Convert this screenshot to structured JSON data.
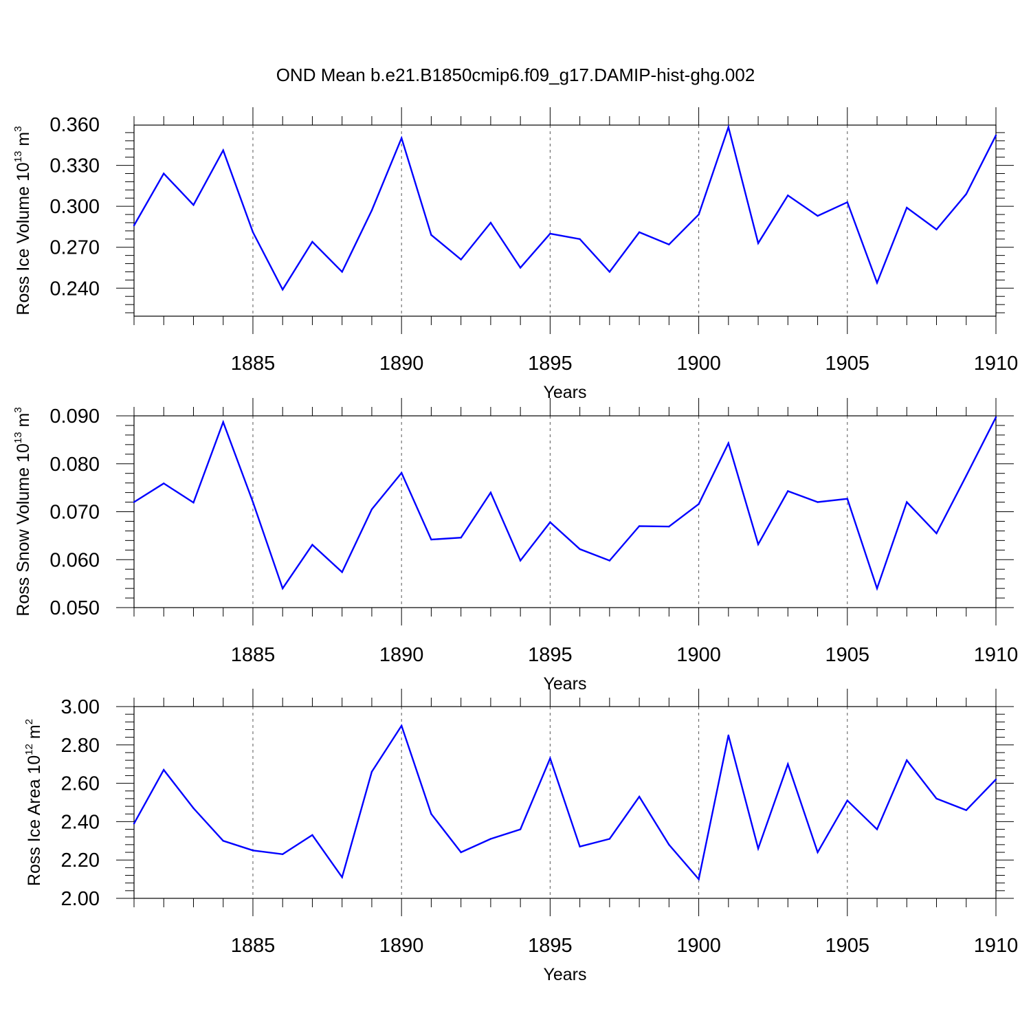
{
  "title": "OND Mean b.e21.B1850cmip6.f09_g17.DAMIP-hist-ghg.002",
  "chart_data": [
    {
      "type": "line",
      "xlabel": "Years",
      "ylabel": "Ross Ice Volume 10",
      "ylabel_exp": "13",
      "ylabel_unit": " m",
      "ylabel_unit_exp": "3",
      "xlim": [
        1881,
        1910
      ],
      "ylim": [
        0.2195,
        0.3595
      ],
      "yticks": [
        "0.360",
        "0.330",
        "0.300",
        "0.270",
        "0.240"
      ],
      "yticks_values": [
        0.36,
        0.33,
        0.3,
        0.27,
        0.24
      ],
      "xticks": [
        "1885",
        "1890",
        "1895",
        "1900",
        "1905",
        "1910"
      ],
      "xticks_values": [
        1885,
        1890,
        1895,
        1900,
        1905,
        1910
      ],
      "grid": "dashed vertical at major x ticks",
      "line_color": "#0000ff",
      "x": [
        1881,
        1882,
        1883,
        1884,
        1885,
        1886,
        1887,
        1888,
        1889,
        1890,
        1891,
        1892,
        1893,
        1894,
        1895,
        1896,
        1897,
        1898,
        1899,
        1900,
        1901,
        1902,
        1903,
        1904,
        1905,
        1906,
        1907,
        1908,
        1909,
        1910
      ],
      "values": [
        0.286,
        0.324,
        0.301,
        0.341,
        0.281,
        0.239,
        0.274,
        0.252,
        0.297,
        0.35,
        0.279,
        0.261,
        0.288,
        0.255,
        0.28,
        0.276,
        0.252,
        0.281,
        0.272,
        0.294,
        0.358,
        0.273,
        0.308,
        0.293,
        0.303,
        0.244,
        0.299,
        0.283,
        0.309,
        0.352
      ]
    },
    {
      "type": "line",
      "xlabel": "Years",
      "ylabel": "Ross Snow Volume 10",
      "ylabel_exp": "13",
      "ylabel_unit": " m",
      "ylabel_unit_exp": "3",
      "xlim": [
        1881,
        1910
      ],
      "ylim": [
        0.05,
        0.09
      ],
      "yticks": [
        "0.090",
        "0.080",
        "0.070",
        "0.060",
        "0.050"
      ],
      "yticks_values": [
        0.09,
        0.08,
        0.07,
        0.06,
        0.05
      ],
      "xticks": [
        "1885",
        "1890",
        "1895",
        "1900",
        "1905",
        "1910"
      ],
      "xticks_values": [
        1885,
        1890,
        1895,
        1900,
        1905,
        1910
      ],
      "grid": "dashed vertical at major x ticks",
      "line_color": "#0000ff",
      "x": [
        1881,
        1882,
        1883,
        1884,
        1885,
        1886,
        1887,
        1888,
        1889,
        1890,
        1891,
        1892,
        1893,
        1894,
        1895,
        1896,
        1897,
        1898,
        1899,
        1900,
        1901,
        1902,
        1903,
        1904,
        1905,
        1906,
        1907,
        1908,
        1909,
        1910
      ],
      "values": [
        0.072,
        0.0759,
        0.0719,
        0.0887,
        0.072,
        0.054,
        0.0631,
        0.0574,
        0.0705,
        0.0781,
        0.0642,
        0.0646,
        0.074,
        0.0598,
        0.0678,
        0.0622,
        0.0598,
        0.067,
        0.0669,
        0.0716,
        0.0843,
        0.0632,
        0.0743,
        0.072,
        0.0727,
        0.054,
        0.072,
        0.0655,
        0.0775,
        0.0897
      ]
    },
    {
      "type": "line",
      "xlabel": "Years",
      "ylabel": "Ross Ice Area 10",
      "ylabel_exp": "12",
      "ylabel_unit": " m",
      "ylabel_unit_exp": "2",
      "xlim": [
        1881,
        1910
      ],
      "ylim": [
        2.0,
        3.0
      ],
      "yticks": [
        "3.00",
        "2.80",
        "2.60",
        "2.40",
        "2.20",
        "2.00"
      ],
      "yticks_values": [
        3.0,
        2.8,
        2.6,
        2.4,
        2.2,
        2.0
      ],
      "xticks": [
        "1885",
        "1890",
        "1895",
        "1900",
        "1905",
        "1910"
      ],
      "xticks_values": [
        1885,
        1890,
        1895,
        1900,
        1905,
        1910
      ],
      "grid": "dashed vertical at major x ticks",
      "line_color": "#0000ff",
      "x": [
        1881,
        1882,
        1883,
        1884,
        1885,
        1886,
        1887,
        1888,
        1889,
        1890,
        1891,
        1892,
        1893,
        1894,
        1895,
        1896,
        1897,
        1898,
        1899,
        1900,
        1901,
        1902,
        1903,
        1904,
        1905,
        1906,
        1907,
        1908,
        1909,
        1910
      ],
      "values": [
        2.39,
        2.67,
        2.47,
        2.3,
        2.25,
        2.23,
        2.33,
        2.11,
        2.66,
        2.9,
        2.44,
        2.24,
        2.31,
        2.36,
        2.73,
        2.27,
        2.31,
        2.53,
        2.28,
        2.1,
        2.85,
        2.26,
        2.7,
        2.24,
        2.51,
        2.36,
        2.72,
        2.52,
        2.46,
        2.62
      ]
    }
  ]
}
